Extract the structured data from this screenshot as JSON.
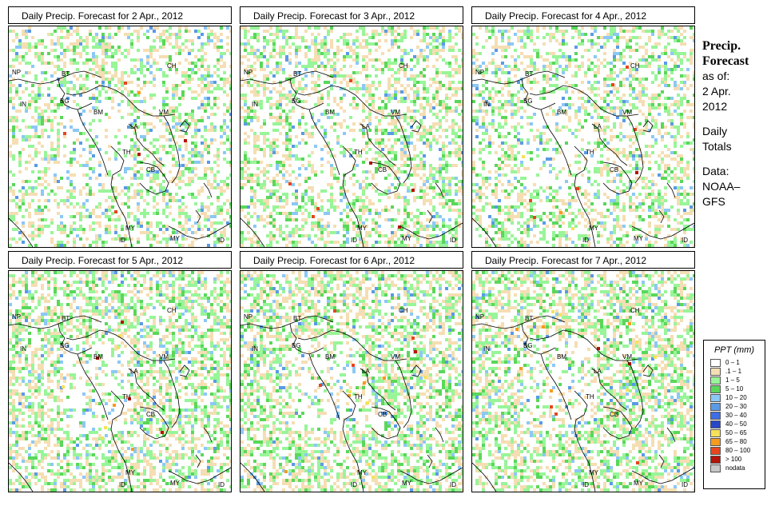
{
  "panels": [
    {
      "title": "Daily Precip. Forecast for  2 Apr., 2012",
      "seed": 11,
      "density": 0.34
    },
    {
      "title": "Daily Precip. Forecast for  3 Apr., 2012",
      "seed": 23,
      "density": 0.4
    },
    {
      "title": "Daily Precip. Forecast for  4 Apr., 2012",
      "seed": 37,
      "density": 0.36
    },
    {
      "title": "Daily Precip. Forecast for  5 Apr., 2012",
      "seed": 41,
      "density": 0.46
    },
    {
      "title": "Daily Precip. Forecast for  6 Apr., 2012",
      "seed": 53,
      "density": 0.48
    },
    {
      "title": "Daily Precip. Forecast for  7 Apr., 2012",
      "seed": 67,
      "density": 0.5
    }
  ],
  "map_labels": [
    "NP",
    "BT",
    "IN",
    "BG",
    "BM",
    "CH",
    "VM",
    "LA",
    "TH",
    "CB",
    "MY",
    "MY",
    "ID",
    "ID"
  ],
  "side": {
    "title1": "Precip.",
    "title2": "Forecast",
    "asof": "as of:",
    "date1": "2 Apr.",
    "date2": "2012",
    "totals1": "Daily",
    "totals2": "Totals",
    "data1": "Data:",
    "data2": "NOAA–",
    "data3": "GFS"
  },
  "legend": {
    "title": "PPT (mm)",
    "items": [
      {
        "label": "0 – 1",
        "color": "#ffffff"
      },
      {
        "label": ".1 – 1",
        "color": "#f5deb3"
      },
      {
        "label": "1 – 5",
        "color": "#98f598"
      },
      {
        "label": "5 – 10",
        "color": "#5ad75a"
      },
      {
        "label": "10 – 20",
        "color": "#8cc8f5"
      },
      {
        "label": "20 – 30",
        "color": "#5a9ae6"
      },
      {
        "label": "30 – 40",
        "color": "#3c6ee6"
      },
      {
        "label": "40 – 50",
        "color": "#2846c8"
      },
      {
        "label": "50 – 65",
        "color": "#f5e15a"
      },
      {
        "label": "65 – 80",
        "color": "#f59b1e"
      },
      {
        "label": "80 – 100",
        "color": "#e6461e"
      },
      {
        "label": "> 100",
        "color": "#b4140a"
      },
      {
        "label": "nodata",
        "color": "#c8c8c8"
      }
    ]
  }
}
